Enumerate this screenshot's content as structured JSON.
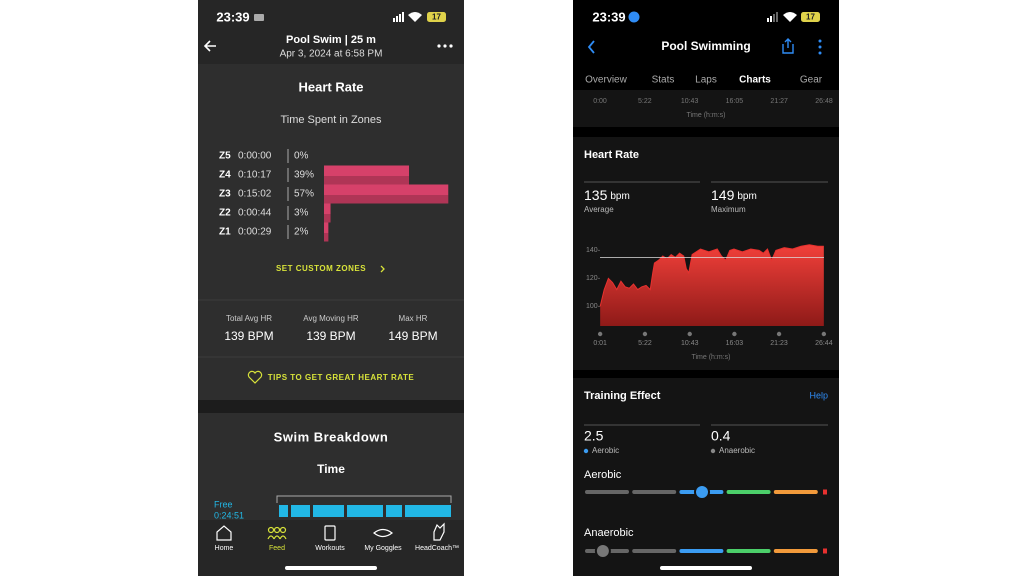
{
  "left_screen": {
    "status": {
      "time": "23:39",
      "battery": "17"
    },
    "header": {
      "title": "Pool Swim | 25 m",
      "subtitle": "Apr 3, 2024 at 6:58 PM"
    },
    "heart_rate": {
      "title": "Heart Rate",
      "subtitle": "Time Spent in Zones",
      "color": "#d6416a",
      "zones": [
        {
          "zone": "Z5",
          "time": "0:00:00",
          "percent": 0,
          "percent_label": "0%"
        },
        {
          "zone": "Z4",
          "time": "0:10:17",
          "percent": 39,
          "percent_label": "39%"
        },
        {
          "zone": "Z3",
          "time": "0:15:02",
          "percent": 57,
          "percent_label": "57%"
        },
        {
          "zone": "Z2",
          "time": "0:00:44",
          "percent": 3,
          "percent_label": "3%"
        },
        {
          "zone": "Z1",
          "time": "0:00:29",
          "percent": 2,
          "percent_label": "2%"
        }
      ],
      "custom_zones": "SET CUSTOM ZONES",
      "stats": [
        {
          "label": "Total Avg HR",
          "value": "139 BPM"
        },
        {
          "label": "Avg Moving HR",
          "value": "139 BPM"
        },
        {
          "label": "Max HR",
          "value": "149 BPM"
        }
      ],
      "tips": "TIPS TO GET GREAT HEART RATE"
    },
    "swim_breakdown": {
      "title": "Swim Breakdown",
      "subtitle": "Time",
      "stroke": "Free",
      "time": "0:24:51"
    },
    "nav": [
      "Home",
      "Feed",
      "Workouts",
      "My Goggles",
      "HeadCoach™"
    ],
    "active_nav": "Feed"
  },
  "right_screen": {
    "status": {
      "time": "23:39",
      "battery": "17"
    },
    "header": {
      "title": "Pool Swimming"
    },
    "tabs": [
      "Overview",
      "Stats",
      "Laps",
      "Charts",
      "Gear"
    ],
    "active_tab": "Charts",
    "prev_chart": {
      "xticks": [
        "0:00",
        "5:22",
        "10:43",
        "16:05",
        "21:27",
        "26:48"
      ],
      "xlabel": "Time (h:m:s)"
    },
    "heart_rate": {
      "title": "Heart Rate",
      "unit": "bpm",
      "average": 135,
      "average_label": "Average",
      "maximum": 149,
      "maximum_label": "Maximum",
      "chart": {
        "type": "area",
        "color": "#e8312f",
        "x": [
          0.02,
          0.5,
          1,
          1.5,
          2,
          2.5,
          3,
          3.5,
          4,
          4.5,
          5,
          5.5,
          6,
          6.3,
          6.5,
          7,
          7.5,
          8,
          8.5,
          9,
          9.5,
          10,
          10.3,
          10.6,
          11,
          11.5,
          12,
          13,
          14,
          14.5,
          15,
          15.5,
          16,
          17,
          18,
          19,
          19.5,
          20,
          20.5,
          21,
          22,
          23,
          24,
          25,
          26,
          26.73
        ],
        "values": [
          100,
          112,
          120,
          117,
          112,
          118,
          114,
          113,
          116,
          112,
          114,
          115,
          112,
          124,
          131,
          133,
          136,
          134,
          137,
          135,
          138,
          136,
          127,
          124,
          137,
          139,
          141,
          139,
          141,
          136,
          133,
          140,
          141,
          139,
          141,
          140,
          138,
          141,
          133,
          140,
          142,
          141,
          143,
          144,
          143,
          143
        ],
        "xlim": [
          0,
          26.75
        ],
        "ylim": [
          86,
          150
        ],
        "yticks": [
          100,
          120,
          140
        ],
        "xticks": [
          {
            "value": 0.017,
            "label": "0:01"
          },
          {
            "value": 5.367,
            "label": "5:22"
          },
          {
            "value": 10.717,
            "label": "10:43"
          },
          {
            "value": 16.05,
            "label": "16:03"
          },
          {
            "value": 21.383,
            "label": "21:23"
          },
          {
            "value": 26.733,
            "label": "26:44"
          }
        ],
        "xlabel": "Time (h:m:s)"
      }
    },
    "training_effect": {
      "title": "Training Effect",
      "help": "Help",
      "aerobic": 2.5,
      "aerobic_label": "Aerobic",
      "anaerobic": 0.4,
      "anaerobic_label": "Anaerobic",
      "scale_lim": [
        0,
        5
      ]
    }
  }
}
